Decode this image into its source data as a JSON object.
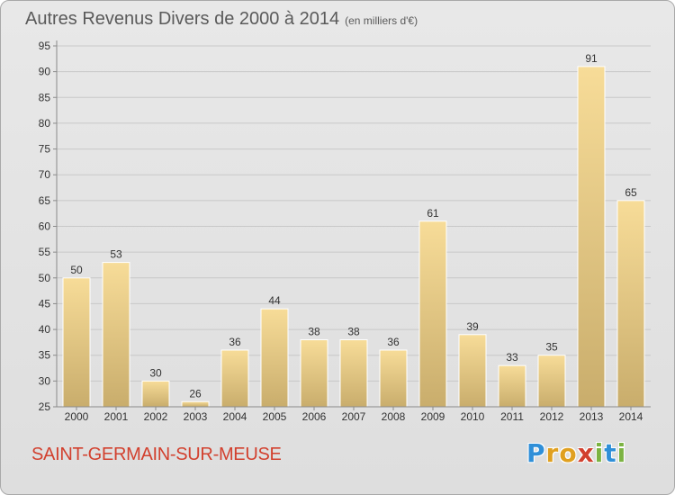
{
  "header": {
    "title": "Autres Revenus Divers de 2000 à 2014",
    "subtitle": "(en milliers d'€)"
  },
  "footer": {
    "commune": "SAINT-GERMAIN-SUR-MEUSE",
    "logo_letters": [
      "P",
      "r",
      "o",
      "x",
      "i",
      "t",
      "i"
    ],
    "logo_colors": [
      "#2f8fd8",
      "#e0a020",
      "#e0a020",
      "#d2402e",
      "#7cb342",
      "#2f8fd8",
      "#7cb342"
    ]
  },
  "colors": {
    "bar_light": "#f7dc98",
    "bar_dark": "#c9ad6c",
    "axis": "#8a8a8a",
    "grid": "#c8c8c8"
  },
  "chart_data": {
    "type": "bar",
    "categories": [
      "2000",
      "2001",
      "2002",
      "2003",
      "2004",
      "2005",
      "2006",
      "2007",
      "2008",
      "2009",
      "2010",
      "2011",
      "2012",
      "2013",
      "2014"
    ],
    "values": [
      50,
      53,
      30,
      26,
      36,
      44,
      38,
      38,
      36,
      61,
      39,
      33,
      35,
      91,
      65
    ],
    "ylim": [
      25,
      95
    ],
    "yticks": [
      25,
      30,
      35,
      40,
      45,
      50,
      55,
      60,
      65,
      70,
      75,
      80,
      85,
      90,
      95
    ],
    "grid": true,
    "data_labels": true
  }
}
